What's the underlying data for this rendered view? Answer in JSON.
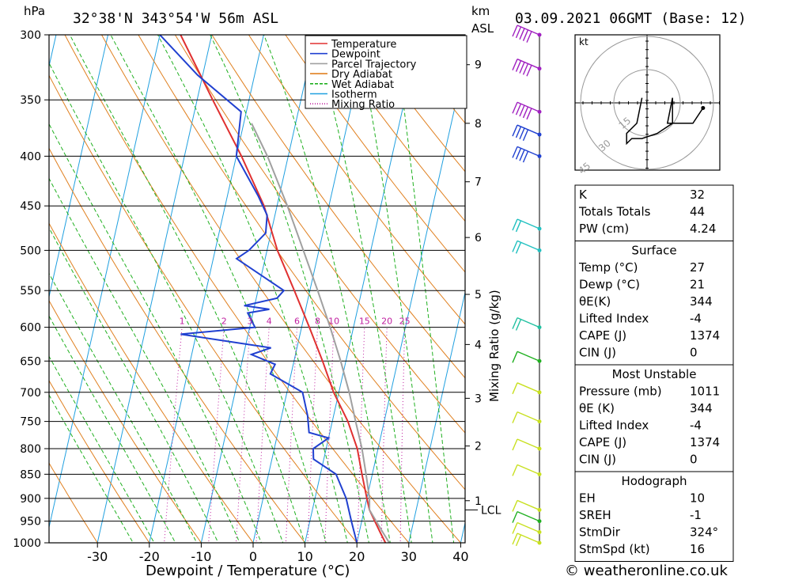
{
  "header": {
    "pressure_unit": "hPa",
    "location": "32°38'N 343°54'W 56m ASL",
    "height_unit_top": "km",
    "height_unit_bottom": "ASL",
    "datetime": "03.09.2021 06GMT (Base: 12)"
  },
  "legend": {
    "items": [
      {
        "label": "Temperature",
        "color": "#e03030",
        "style": "solid"
      },
      {
        "label": "Dewpoint",
        "color": "#2040d0",
        "style": "solid"
      },
      {
        "label": "Parcel Trajectory",
        "color": "#a0a0a0",
        "style": "solid"
      },
      {
        "label": "Dry Adiabat",
        "color": "#e08020",
        "style": "solid"
      },
      {
        "label": "Wet Adiabat",
        "color": "#20b020",
        "style": "dashed"
      },
      {
        "label": "Isotherm",
        "color": "#20a0e0",
        "style": "solid"
      },
      {
        "label": "Mixing Ratio",
        "color": "#c020a0",
        "style": "dotted"
      }
    ]
  },
  "chart_data": {
    "type": "line",
    "xlabel": "Dewpoint / Temperature (°C)",
    "ylabel": "hPa",
    "xlim": [
      -40,
      40
    ],
    "ylim": [
      1000,
      300
    ],
    "x_ticks": [
      "-30",
      "-20",
      "-10",
      "0",
      "10",
      "20",
      "30",
      "40"
    ],
    "x_tick_values": [
      -30,
      -20,
      -10,
      0,
      10,
      20,
      30,
      40
    ],
    "pressure_levels": [
      300,
      350,
      400,
      450,
      500,
      550,
      600,
      650,
      700,
      750,
      800,
      850,
      900,
      950,
      1000
    ],
    "height_axis_label": "km ASL",
    "height_ticks": [
      {
        "label": "1",
        "pressure": 905
      },
      {
        "label": "2",
        "pressure": 795
      },
      {
        "label": "3",
        "pressure": 710
      },
      {
        "label": "4",
        "pressure": 625
      },
      {
        "label": "5",
        "pressure": 555
      },
      {
        "label": "6",
        "pressure": 485
      },
      {
        "label": "7",
        "pressure": 425
      },
      {
        "label": "8",
        "pressure": 370
      },
      {
        "label": "9",
        "pressure": 322
      }
    ],
    "lcl": {
      "label": "LCL",
      "pressure": 925
    },
    "mixing_ratio_label": "Mixing Ratio (g/kg)",
    "mixing_ratio_values": [
      "1",
      "2",
      "3",
      "4",
      "6",
      "8",
      "10",
      "15",
      "20",
      "25"
    ],
    "mixing_ratio_numbers": [
      1,
      2,
      3,
      4,
      6,
      8,
      10,
      15,
      20,
      25
    ],
    "series": [
      {
        "name": "Temperature",
        "color": "#e03030",
        "points": [
          [
            1011,
            27.0
          ],
          [
            1000,
            25.5
          ],
          [
            975,
            24.0
          ],
          [
            950,
            22.5
          ],
          [
            925,
            21.0
          ],
          [
            900,
            20.0
          ],
          [
            850,
            18.0
          ],
          [
            800,
            16.0
          ],
          [
            750,
            13.0
          ],
          [
            700,
            9.0
          ],
          [
            650,
            5.5
          ],
          [
            600,
            1.5
          ],
          [
            550,
            -3.0
          ],
          [
            500,
            -8.0
          ],
          [
            450,
            -12.5
          ],
          [
            400,
            -19.0
          ],
          [
            350,
            -27.0
          ],
          [
            300,
            -36.0
          ]
        ]
      },
      {
        "name": "Dewpoint",
        "color": "#2040d0",
        "points": [
          [
            1011,
            21.0
          ],
          [
            1000,
            20.0
          ],
          [
            950,
            18.0
          ],
          [
            900,
            16.0
          ],
          [
            850,
            13.0
          ],
          [
            820,
            8.0
          ],
          [
            800,
            7.5
          ],
          [
            780,
            10.0
          ],
          [
            770,
            6.0
          ],
          [
            740,
            5.0
          ],
          [
            700,
            3.0
          ],
          [
            670,
            -4.0
          ],
          [
            655,
            -3.5
          ],
          [
            640,
            -8.5
          ],
          [
            630,
            -5.0
          ],
          [
            610,
            -23.0
          ],
          [
            600,
            -9.0
          ],
          [
            580,
            -11.0
          ],
          [
            575,
            -7.0
          ],
          [
            570,
            -12.0
          ],
          [
            560,
            -6.0
          ],
          [
            550,
            -5.0
          ],
          [
            510,
            -15.5
          ],
          [
            500,
            -13.5
          ],
          [
            480,
            -11.0
          ],
          [
            460,
            -11.5
          ],
          [
            440,
            -14.0
          ],
          [
            400,
            -20.0
          ],
          [
            360,
            -21.0
          ],
          [
            330,
            -31.0
          ],
          [
            300,
            -40.0
          ]
        ]
      },
      {
        "name": "Parcel Trajectory",
        "color": "#a0a0a0",
        "points": [
          [
            1011,
            27.0
          ],
          [
            975,
            24.5
          ],
          [
            925,
            21.0
          ],
          [
            900,
            20.5
          ],
          [
            850,
            18.8
          ],
          [
            800,
            16.9
          ],
          [
            750,
            14.5
          ],
          [
            700,
            12.0
          ],
          [
            650,
            9.0
          ],
          [
            600,
            5.5
          ],
          [
            550,
            1.5
          ],
          [
            500,
            -3.0
          ],
          [
            450,
            -8.0
          ],
          [
            400,
            -14.0
          ],
          [
            370,
            -18.5
          ]
        ]
      }
    ],
    "wind_barbs": [
      {
        "pressure": 1000,
        "speed_kt": 15,
        "color": "#c8e020"
      },
      {
        "pressure": 975,
        "speed_kt": 10,
        "color": "#c8e020"
      },
      {
        "pressure": 950,
        "speed_kt": 10,
        "color": "#20b020"
      },
      {
        "pressure": 925,
        "speed_kt": 10,
        "color": "#c8e020"
      },
      {
        "pressure": 850,
        "speed_kt": 10,
        "color": "#c8e020"
      },
      {
        "pressure": 800,
        "speed_kt": 10,
        "color": "#c8e020"
      },
      {
        "pressure": 750,
        "speed_kt": 10,
        "color": "#c8e020"
      },
      {
        "pressure": 700,
        "speed_kt": 10,
        "color": "#c8e020"
      },
      {
        "pressure": 650,
        "speed_kt": 10,
        "color": "#20b020"
      },
      {
        "pressure": 600,
        "speed_kt": 15,
        "color": "#20c0a0"
      },
      {
        "pressure": 500,
        "speed_kt": 15,
        "color": "#20c0c0"
      },
      {
        "pressure": 475,
        "speed_kt": 20,
        "color": "#20c0c0"
      },
      {
        "pressure": 400,
        "speed_kt": 40,
        "color": "#2040d0"
      },
      {
        "pressure": 380,
        "speed_kt": 40,
        "color": "#2040d0"
      },
      {
        "pressure": 360,
        "speed_kt": 50,
        "color": "#a020c0"
      },
      {
        "pressure": 325,
        "speed_kt": 45,
        "color": "#a020c0"
      },
      {
        "pressure": 300,
        "speed_kt": 50,
        "color": "#a020c0"
      }
    ],
    "hodograph": {
      "unit": "kt",
      "rings": [
        "15",
        "30",
        "45"
      ],
      "points_kt": [
        [
          11,
          1
        ],
        [
          9,
          4
        ],
        [
          4,
          4
        ],
        [
          5,
          -1
        ],
        [
          5,
          4
        ],
        [
          2,
          6
        ],
        [
          -1,
          7
        ],
        [
          -3,
          7
        ],
        [
          -4,
          8
        ],
        [
          -4,
          6
        ],
        [
          -2,
          4
        ],
        [
          -1,
          -1
        ]
      ]
    }
  },
  "parameters": {
    "general": [
      {
        "label": "K",
        "value": "32"
      },
      {
        "label": "Totals Totals",
        "value": "44"
      },
      {
        "label": "PW (cm)",
        "value": "4.24"
      }
    ],
    "surface": {
      "title": "Surface",
      "rows": [
        {
          "label": "Temp (°C)",
          "value": "27"
        },
        {
          "label": "Dewp (°C)",
          "value": "21"
        },
        {
          "label": "θE(K)",
          "value": "344"
        },
        {
          "label": "Lifted Index",
          "value": "-4"
        },
        {
          "label": "CAPE (J)",
          "value": "1374"
        },
        {
          "label": "CIN (J)",
          "value": "0"
        }
      ]
    },
    "most_unstable": {
      "title": "Most Unstable",
      "rows": [
        {
          "label": "Pressure (mb)",
          "value": "1011"
        },
        {
          "label": "θE (K)",
          "value": "344"
        },
        {
          "label": "Lifted Index",
          "value": "-4"
        },
        {
          "label": "CAPE (J)",
          "value": "1374"
        },
        {
          "label": "CIN (J)",
          "value": "0"
        }
      ]
    },
    "hodograph": {
      "title": "Hodograph",
      "rows": [
        {
          "label": "EH",
          "value": "10"
        },
        {
          "label": "SREH",
          "value": "-1"
        },
        {
          "label": "StmDir",
          "value": "324°"
        },
        {
          "label": "StmSpd (kt)",
          "value": "16"
        }
      ]
    }
  },
  "footer": {
    "copyright": "© weatheronline.co.uk"
  }
}
